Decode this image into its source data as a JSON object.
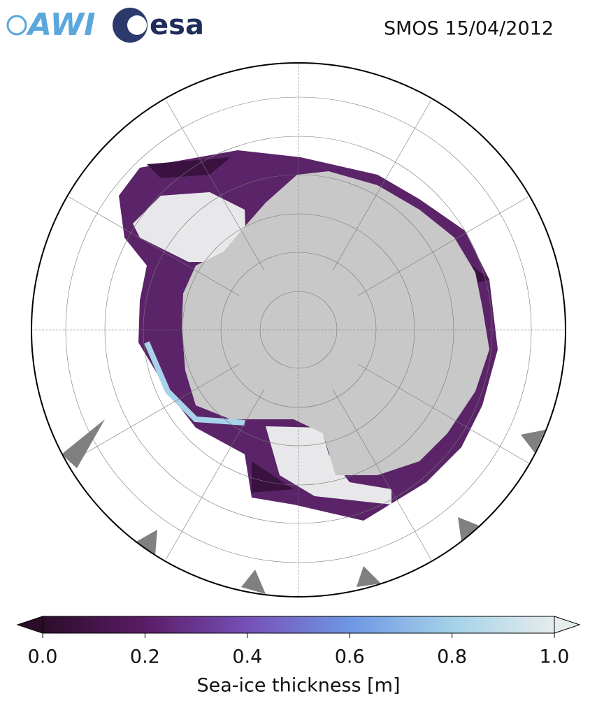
{
  "header": {
    "logos": [
      "AWI",
      "esa"
    ],
    "title": "SMOS 15/04/2012"
  },
  "colorbar": {
    "label": "Sea-ice thickness [m]",
    "lim": [
      0,
      1
    ],
    "ticks": [
      {
        "value": 0,
        "label": "0.0"
      },
      {
        "value": 0.2,
        "label": "0.2"
      },
      {
        "value": 0.4,
        "label": "0.4"
      },
      {
        "value": 0.6,
        "label": "0.6"
      },
      {
        "value": 0.8,
        "label": "0.8"
      },
      {
        "value": 1,
        "label": "1.0"
      }
    ],
    "colors": [
      "#2b0d2a",
      "#5a1c66",
      "#7650b8",
      "#6f96e4",
      "#a3d2e8",
      "#e6ecec"
    ]
  }
}
